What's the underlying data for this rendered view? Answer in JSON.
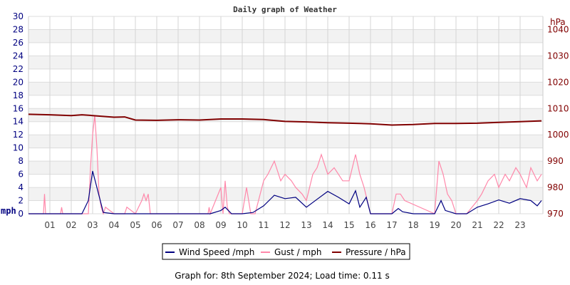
{
  "chart_data": {
    "type": "line",
    "title": "Daily graph of Weather",
    "left_axis": {
      "unit_label": "mph",
      "range": [
        0,
        30
      ],
      "ticks": [
        0,
        2,
        4,
        6,
        8,
        10,
        12,
        14,
        16,
        18,
        20,
        22,
        24,
        26,
        28,
        30
      ]
    },
    "right_axis": {
      "unit_label": "hPa",
      "range": [
        970,
        1045
      ],
      "ticks": [
        970,
        980,
        990,
        1000,
        1010,
        1020,
        1030,
        1040
      ]
    },
    "x_axis": {
      "unit": "hour",
      "range": [
        0,
        24
      ],
      "tick_labels": [
        "01",
        "02",
        "03",
        "04",
        "05",
        "06",
        "07",
        "08",
        "09",
        "10",
        "11",
        "12",
        "13",
        "14",
        "15",
        "16",
        "17",
        "18",
        "19",
        "20",
        "21",
        "22",
        "23"
      ]
    },
    "grid": true,
    "legend_placement": "bottom",
    "series": [
      {
        "name": "Wind Speed /mph",
        "axis": "left",
        "color": "#000080",
        "x": [
          0,
          0.5,
          1,
          1.5,
          2,
          2.5,
          2.8,
          3,
          3.2,
          3.5,
          4,
          4.5,
          5,
          5.5,
          6,
          6.5,
          7,
          7.5,
          8,
          8.5,
          9,
          9.2,
          9.5,
          10,
          10.5,
          11,
          11.5,
          12,
          12.5,
          13,
          13.5,
          14,
          14.5,
          15,
          15.3,
          15.5,
          15.8,
          16,
          16.5,
          17,
          17.3,
          17.5,
          18,
          18.5,
          19,
          19.3,
          19.5,
          20,
          20.5,
          21,
          21.5,
          22,
          22.5,
          23,
          23.5,
          23.8,
          24
        ],
        "values": [
          0,
          0,
          0,
          0,
          0,
          0,
          2,
          6.5,
          4,
          0.2,
          0,
          0,
          0,
          0,
          0,
          0,
          0,
          0,
          0,
          0,
          0.5,
          1,
          0,
          0,
          0.2,
          1.2,
          2.8,
          2.3,
          2.5,
          1.0,
          2.2,
          3.4,
          2.5,
          1.5,
          3.5,
          1.0,
          2.5,
          0,
          0,
          0,
          0.8,
          0.3,
          0,
          0,
          0,
          2.0,
          0.5,
          0,
          0,
          1.0,
          1.5,
          2.1,
          1.6,
          2.3,
          2.0,
          1.2,
          2.0
        ]
      },
      {
        "name": "Gust / mph",
        "axis": "left",
        "color": "#ff88aa",
        "x": [
          0,
          0.7,
          0.75,
          0.8,
          1,
          1.5,
          1.55,
          1.6,
          2,
          2.8,
          2.9,
          3,
          3.1,
          3.2,
          3.3,
          3.4,
          3.5,
          3.6,
          4,
          4.5,
          4.6,
          5,
          5.3,
          5.4,
          5.5,
          5.6,
          5.7,
          6,
          8.4,
          8.45,
          8.5,
          9,
          9.1,
          9.2,
          9.3,
          9.4,
          9.5,
          10,
          10.2,
          10.3,
          10.4,
          10.6,
          11,
          11.2,
          11.5,
          11.8,
          12,
          12.3,
          12.5,
          12.8,
          13,
          13.3,
          13.5,
          13.7,
          14,
          14.3,
          14.5,
          14.7,
          15,
          15.3,
          15.5,
          15.7,
          16,
          17,
          17.2,
          17.4,
          17.6,
          19,
          19.2,
          19.4,
          19.6,
          19.8,
          20,
          20.5,
          21,
          21.2,
          21.5,
          21.8,
          22,
          22.3,
          22.5,
          22.8,
          23,
          23.3,
          23.5,
          23.8,
          24
        ],
        "values": [
          0,
          0,
          3,
          0,
          0,
          0,
          1,
          0,
          0,
          0,
          7,
          12,
          15,
          10,
          3,
          1,
          0,
          1,
          0,
          0,
          1,
          0,
          2,
          3,
          2,
          3,
          0,
          0,
          0,
          1,
          0,
          4,
          0,
          5,
          1,
          0,
          0,
          0,
          4,
          2,
          0,
          0,
          5,
          6,
          8,
          5,
          6,
          5,
          4,
          3,
          2,
          6,
          7,
          9,
          6,
          7,
          6,
          5,
          5,
          9,
          6,
          4,
          0,
          0,
          3,
          3,
          2,
          0,
          8,
          6,
          3,
          2,
          0,
          0,
          2,
          3,
          5,
          6,
          4,
          6,
          5,
          7,
          6,
          4,
          7,
          5,
          6
        ]
      },
      {
        "name": "Pressure / hPa",
        "axis": "right",
        "color": "#800000",
        "x": [
          0,
          1,
          2,
          2.5,
          3,
          4,
          4.5,
          5,
          6,
          7,
          8,
          9,
          10,
          11,
          12,
          13,
          14,
          15,
          16,
          17,
          18,
          19,
          20,
          21,
          22,
          23,
          24
        ],
        "values": [
          1007.8,
          1007.6,
          1007.3,
          1007.6,
          1007.3,
          1006.7,
          1006.8,
          1005.6,
          1005.5,
          1005.7,
          1005.6,
          1006.0,
          1006.0,
          1005.8,
          1005.1,
          1004.9,
          1004.6,
          1004.4,
          1004.2,
          1003.7,
          1003.9,
          1004.3,
          1004.3,
          1004.4,
          1004.7,
          1005.0,
          1005.3
        ]
      }
    ]
  },
  "footer": "Graph for: 8th September 2024; Load time: 0.11 s"
}
